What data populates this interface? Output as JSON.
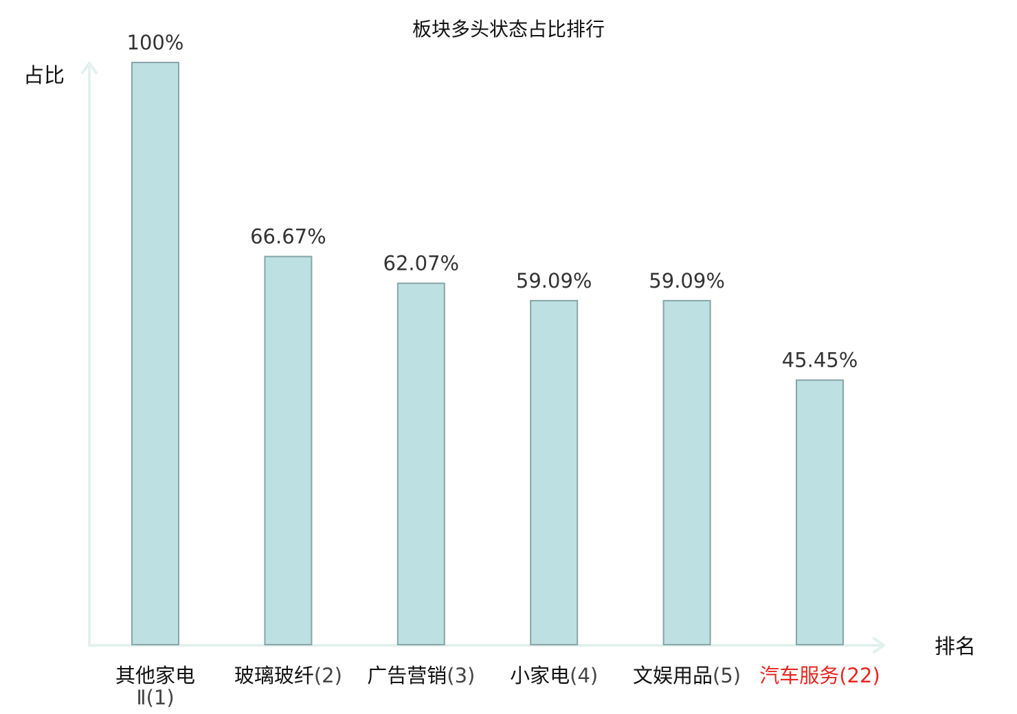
{
  "chart_data": {
    "type": "bar",
    "title": "板块多头状态占比排行",
    "ylabel": "占比",
    "xlabel": "排名",
    "ylim": [
      0,
      100
    ],
    "grid": false,
    "categories": [
      {
        "name": "其他家电",
        "name_line2": "Ⅱ",
        "rank": "(1)",
        "highlight": false
      },
      {
        "name": "玻璃玻纤",
        "rank": "(2)",
        "highlight": false
      },
      {
        "name": "广告营销",
        "rank": "(3)",
        "highlight": false
      },
      {
        "name": "小家电",
        "rank": "(4)",
        "highlight": false
      },
      {
        "name": "文娱用品",
        "rank": "(5)",
        "highlight": false
      },
      {
        "name": "汽车服务",
        "rank": "(22)",
        "highlight": true
      }
    ],
    "values": [
      100,
      66.67,
      62.07,
      59.09,
      59.09,
      45.45
    ],
    "value_labels": [
      "100%",
      "66.67%",
      "62.07%",
      "59.09%",
      "59.09%",
      "45.45%"
    ],
    "colors": {
      "bar_fill": "#bde0e2",
      "bar_stroke": "#86a5a7",
      "axis": "#e3f1ee",
      "highlight": "#e8251f"
    }
  }
}
